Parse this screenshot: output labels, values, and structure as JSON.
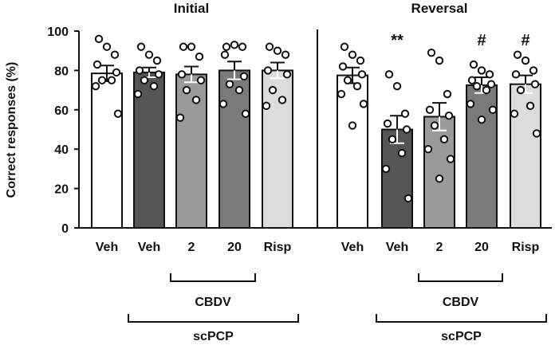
{
  "chart_data": {
    "type": "bar",
    "ylabel": "Correct responses (%)",
    "ylim": [
      0,
      100
    ],
    "yticks": [
      0,
      20,
      40,
      60,
      80,
      100
    ],
    "error_bars": "SEM",
    "individual_points": true,
    "panels": [
      {
        "title": "Initial",
        "categories": [
          "Veh",
          "Veh",
          "2",
          "20",
          "Risp"
        ],
        "values": [
          78.5,
          79,
          78,
          80,
          80
        ],
        "errors": [
          4,
          2.5,
          4,
          4.5,
          4
        ],
        "bar_colors": [
          "#ffffff",
          "#555555",
          "#9a9a9a",
          "#7a7a7a",
          "#dcdcdc"
        ],
        "points": [
          [
            96,
            92,
            88,
            83,
            79,
            75,
            75,
            72,
            58
          ],
          [
            92,
            88,
            85,
            80,
            78,
            75,
            72,
            68
          ],
          [
            92,
            92,
            87,
            78,
            75,
            70,
            65,
            56
          ],
          [
            92,
            93,
            92,
            88,
            77,
            73,
            70,
            63,
            58
          ],
          [
            92,
            90,
            88,
            80,
            78,
            70,
            65,
            62
          ]
        ],
        "annotations": [
          "",
          "",
          "",
          "",
          ""
        ],
        "brackets": [
          {
            "label": "CBDV",
            "from": 2,
            "to": 3
          },
          {
            "label": "scPCP",
            "from": 1,
            "to": 4
          }
        ]
      },
      {
        "title": "Reversal",
        "categories": [
          "Veh",
          "Veh",
          "2",
          "20",
          "Risp"
        ],
        "values": [
          77.5,
          50,
          56.5,
          72.5,
          73
        ],
        "errors": [
          4,
          7,
          7,
          4,
          4.5
        ],
        "bar_colors": [
          "#ffffff",
          "#555555",
          "#9a9a9a",
          "#7a7a7a",
          "#dcdcdc"
        ],
        "points": [
          [
            92,
            88,
            85,
            82,
            78,
            75,
            72,
            68,
            63,
            52
          ],
          [
            78,
            72,
            58,
            53,
            50,
            45,
            38,
            30,
            15
          ],
          [
            89,
            85,
            68,
            60,
            57,
            52,
            45,
            40,
            35,
            25
          ],
          [
            83,
            80,
            78,
            75,
            73,
            72,
            70,
            63,
            60,
            55
          ],
          [
            88,
            85,
            80,
            78,
            73,
            70,
            62,
            58,
            48
          ]
        ],
        "annotations": [
          "",
          "**",
          "",
          "#",
          "#"
        ],
        "brackets": [
          {
            "label": "CBDV",
            "from": 2,
            "to": 3
          },
          {
            "label": "scPCP",
            "from": 1,
            "to": 4
          }
        ]
      }
    ]
  }
}
